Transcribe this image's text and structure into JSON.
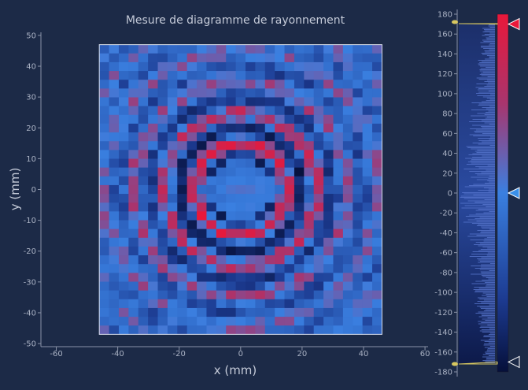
{
  "chart_data": {
    "type": "heatmap",
    "title": "Mesure de diagramme de rayonnement",
    "xlabel": "x (mm)",
    "ylabel": "y (mm)",
    "xlim": [
      -65,
      61
    ],
    "ylim": [
      -51,
      51
    ],
    "xticks": [
      "-60",
      "-40",
      "-20",
      "0",
      "20",
      "40",
      "60"
    ],
    "yticks": [
      "50",
      "40",
      "30",
      "20",
      "10",
      "0",
      "-10",
      "-20",
      "-30",
      "-40",
      "-50"
    ],
    "grid_extent": {
      "x": [
        -46,
        46
      ],
      "y": [
        -47,
        47
      ]
    },
    "grid_size": {
      "cols": 29,
      "rows": 33
    },
    "pattern": "concentric rings, radius period ~10 mm, strongest at radius ~15 mm",
    "colorbar": {
      "ticks": [
        "180",
        "160",
        "140",
        "120",
        "100",
        "80",
        "60",
        "40",
        "20",
        "0",
        "-20",
        "-40",
        "-60",
        "-80",
        "-100",
        "-120",
        "-140",
        "-160",
        "-180"
      ],
      "range": [
        -180,
        180
      ],
      "high_marker": 170,
      "low_marker": -170,
      "mid_marker": 0
    },
    "colors": {
      "background": "#1c2a47",
      "low": "#06103a",
      "mid": "#3a7fe0",
      "high": "#e8183a"
    }
  }
}
